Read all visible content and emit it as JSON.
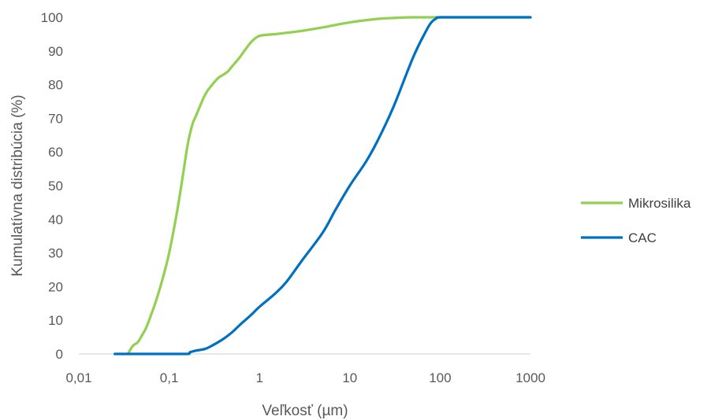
{
  "chart_data": {
    "type": "line",
    "xscale": "log",
    "xlim": [
      0.01,
      1000
    ],
    "ylim": [
      0,
      100
    ],
    "grid": false,
    "legend_position": "right",
    "xlabel": "Veľkosť (µm)",
    "ylabel": "Kumulatívna distribúcia (%)",
    "x_ticks": [
      "0,01",
      "0,1",
      "1",
      "10",
      "100",
      "1000"
    ],
    "y_ticks": [
      "0",
      "10",
      "20",
      "30",
      "40",
      "50",
      "60",
      "70",
      "80",
      "90",
      "100"
    ],
    "series": [
      {
        "name": "Mikrosilika",
        "color": "#92d050",
        "x": [
          0.035,
          0.037,
          0.04,
          0.045,
          0.05,
          0.055,
          0.06,
          0.07,
          0.08,
          0.09,
          0.1,
          0.12,
          0.14,
          0.16,
          0.18,
          0.2,
          0.25,
          0.3,
          0.35,
          0.4,
          0.45,
          0.5,
          0.6,
          0.7,
          0.8,
          0.9,
          1,
          1.2,
          1.5,
          2,
          3,
          5,
          10,
          20,
          30,
          50,
          80,
          100,
          1000
        ],
        "y": [
          0,
          1.2,
          2.5,
          3.5,
          5.5,
          7.5,
          10,
          15,
          20,
          25,
          30,
          41,
          52,
          62,
          68,
          71,
          77,
          80,
          82,
          83,
          84,
          85.5,
          88,
          90.5,
          92.5,
          93.8,
          94.5,
          94.8,
          95,
          95.4,
          96,
          97,
          98.5,
          99.5,
          99.8,
          100,
          100,
          100,
          100
        ]
      },
      {
        "name": "CAC",
        "color": "#0070c0",
        "x": [
          0.025,
          0.1,
          0.16,
          0.17,
          0.2,
          0.25,
          0.3,
          0.4,
          0.5,
          0.6,
          0.8,
          1,
          1.5,
          2,
          3,
          5,
          7,
          10,
          15,
          20,
          30,
          50,
          70,
          80,
          90,
          100,
          200,
          1000
        ],
        "y": [
          0,
          0,
          0,
          0.5,
          1,
          1.5,
          2.5,
          4.5,
          6.5,
          8.5,
          11.5,
          14,
          18,
          21.5,
          28,
          36,
          43,
          50,
          57,
          63,
          73,
          88,
          96,
          98.5,
          99.6,
          100,
          100,
          100
        ]
      }
    ]
  }
}
